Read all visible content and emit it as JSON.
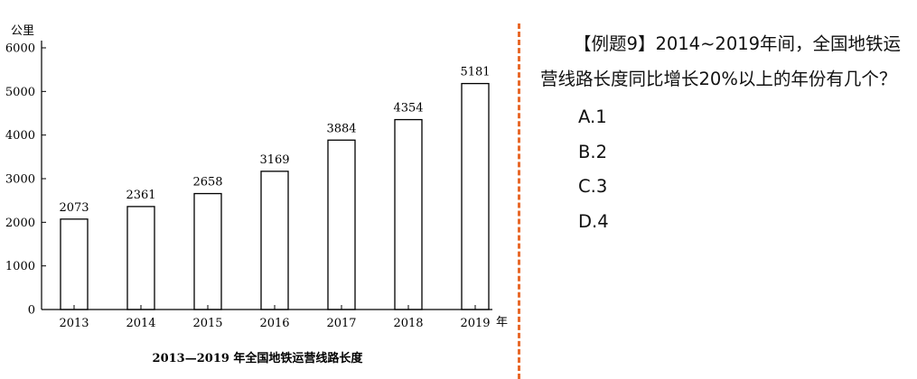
{
  "chart_data": {
    "type": "bar",
    "title": "2013—2019 年全国地铁运营线路长度",
    "ylabel": "公里",
    "xlabel": "年",
    "categories": [
      "2013",
      "2014",
      "2015",
      "2016",
      "2017",
      "2018",
      "2019"
    ],
    "values": [
      2073,
      2361,
      2658,
      3169,
      3884,
      4354,
      5181
    ],
    "yticks": [
      "0",
      "1000",
      "2000",
      "3000",
      "4000",
      "5000",
      "6000"
    ],
    "ylim": [
      0,
      6000
    ],
    "grid": false,
    "bar_fill": "#ffffff",
    "bar_stroke": "#000000"
  },
  "question": {
    "stem": "【例题9】2014~2019年间，全国地铁运营线路长度同比增长20%以上的年份有几个？",
    "options": [
      "A.1",
      "B.2",
      "C.3",
      "D.4"
    ]
  },
  "colors": {
    "divider": "#e8692a",
    "text": "#111111"
  }
}
